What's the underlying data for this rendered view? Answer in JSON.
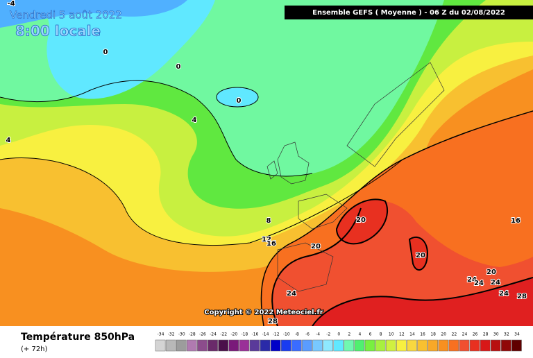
{
  "header": {
    "date": "Vendredi 5 août 2022",
    "time": "8:00 locale",
    "run": "Ensemble GEFS ( Moyenne ) - 06 Z du 02/08/2022"
  },
  "copyright": "Copyright © 2022 Meteociel.fr",
  "contour_labels": [
    "-4",
    "0",
    "0",
    "0",
    "4",
    "4",
    "8",
    "12",
    "16",
    "16",
    "20",
    "20",
    "20",
    "20",
    "24",
    "24",
    "24",
    "24",
    "24",
    "28",
    "28"
  ],
  "footer": {
    "title": "Température 850hPa",
    "lead": "(+ 72h)"
  },
  "scale": {
    "labels": [
      -34,
      -32,
      -30,
      -28,
      -26,
      -24,
      -22,
      -20,
      -18,
      -16,
      -14,
      -12,
      -10,
      -8,
      -6,
      -4,
      -2,
      0,
      2,
      4,
      6,
      8,
      10,
      12,
      14,
      16,
      18,
      20,
      22,
      24,
      26,
      28,
      30,
      32,
      34
    ],
    "colors": [
      "#d4d4d4",
      "#b8b8b8",
      "#9c9c9c",
      "#b07ab0",
      "#8c4c8c",
      "#6a2a6a",
      "#4a104a",
      "#7a1a7a",
      "#9a3098",
      "#5a3a9a",
      "#2a2aa8",
      "#0000c8",
      "#1a3cf0",
      "#3a6cff",
      "#5a9cff",
      "#78c8ff",
      "#8ee8ff",
      "#60e8ff",
      "#70f8b0",
      "#50f070",
      "#78f040",
      "#a8f040",
      "#d0f040",
      "#f8f040",
      "#f8d840",
      "#f8c030",
      "#f8a828",
      "#f89020",
      "#f87020",
      "#f05030",
      "#e83020",
      "#d81818",
      "#b81010",
      "#900808",
      "#600000"
    ]
  }
}
